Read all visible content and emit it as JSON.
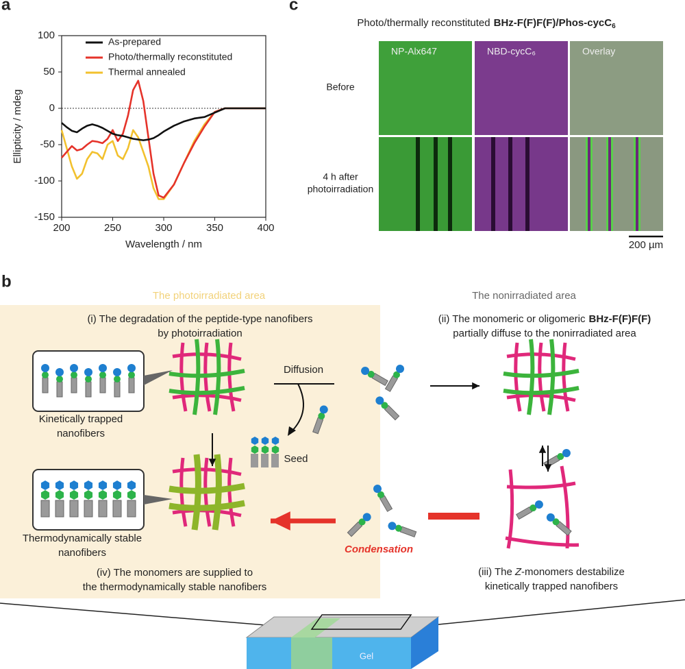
{
  "chart_data": {
    "type": "line",
    "panel": "a",
    "xlabel": "Wavelength / nm",
    "ylabel": "Ellipticity / mdeg",
    "x": [
      200,
      205,
      210,
      215,
      220,
      225,
      230,
      235,
      240,
      245,
      250,
      255,
      260,
      265,
      270,
      275,
      280,
      285,
      290,
      295,
      300,
      310,
      320,
      330,
      340,
      350,
      360,
      380,
      400
    ],
    "series": [
      {
        "name": "As-prepared",
        "color": "#111111",
        "values": [
          -20,
          -26,
          -31,
          -33,
          -28,
          -24,
          -22,
          -24,
          -27,
          -31,
          -35,
          -37,
          -38,
          -40,
          -42,
          -43,
          -44,
          -43,
          -41,
          -37,
          -32,
          -24,
          -18,
          -14,
          -12,
          -6,
          0,
          0,
          0
        ]
      },
      {
        "name": "Photo/thermally reconstituted",
        "color": "#e5332a",
        "values": [
          -68,
          -60,
          -52,
          -58,
          -56,
          -50,
          -45,
          -46,
          -48,
          -42,
          -30,
          -45,
          -35,
          -10,
          25,
          38,
          10,
          -40,
          -90,
          -120,
          -123,
          -105,
          -75,
          -48,
          -25,
          -5,
          0,
          0,
          0
        ]
      },
      {
        "name": "Thermal annealed",
        "color": "#f2c12e",
        "values": [
          -30,
          -55,
          -80,
          -97,
          -90,
          -70,
          -60,
          -62,
          -70,
          -50,
          -45,
          -65,
          -70,
          -55,
          -30,
          -40,
          -60,
          -80,
          -110,
          -125,
          -125,
          -105,
          -75,
          -45,
          -22,
          -5,
          0,
          0,
          0
        ]
      }
    ],
    "xlim": [
      200,
      400
    ],
    "xticks": [
      200,
      250,
      300,
      350,
      400
    ],
    "ylim": [
      -150,
      100
    ],
    "yticks": [
      -150,
      -100,
      -50,
      0,
      50,
      100
    ],
    "zero_line": 0,
    "legend": "upper left"
  },
  "panel_c": {
    "label": "c",
    "title": [
      "Photo/thermally reconstituted",
      "BHz-F(F)F(F)/Phos-cycC",
      "6"
    ],
    "columns": [
      "NP-Alx647",
      "NBD-cycC₆",
      "Overlay"
    ],
    "rows": [
      [
        "Before"
      ],
      [
        "4 h after",
        "photoirradiation"
      ]
    ],
    "scale_bar": "200 µm"
  },
  "panel_b": {
    "label": "b",
    "left_area": "The photoirradiated area",
    "right_area": "The nonirradiated area",
    "step_i": [
      "(i) The degradation of the peptide-type nanofibers",
      "by photoirradiation"
    ],
    "step_ii": [
      "(ii) The monomeric or oligomeric",
      "BHz-F(F)F(F)",
      "partially diffuse to the nonirradiated area"
    ],
    "step_iii": [
      "(iii) The",
      "Z",
      "-monomers destabilize",
      "kinetically trapped nanofibers"
    ],
    "step_iv": [
      "(iv) The monomers are supplied to",
      "the thermodynamically stable nanofibers"
    ],
    "kinetic": [
      "Kinetically trapped",
      "nanofibers"
    ],
    "stable": [
      "Thermodynamically stable",
      "nanofibers"
    ],
    "diffusion": "Diffusion",
    "seed": "Seed",
    "condensation": "Condensation",
    "gel": "Gel"
  }
}
